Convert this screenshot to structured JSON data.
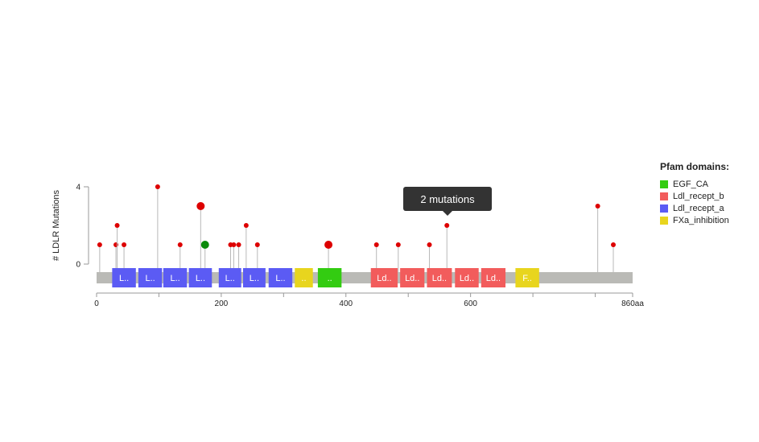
{
  "chart_data": {
    "type": "lollipop",
    "ylabel": "# LDLR Mutations",
    "y_ticks": [
      0,
      4
    ],
    "ylim": [
      0,
      4
    ],
    "x_ticks": [
      {
        "value": 0,
        "label": "0"
      },
      {
        "value": 200,
        "label": "200"
      },
      {
        "value": 400,
        "label": "400"
      },
      {
        "value": 600,
        "label": "600"
      },
      {
        "value": 860,
        "label": "860aa"
      }
    ],
    "xlim": [
      0,
      860
    ],
    "protein_length": 860,
    "mutations": [
      {
        "pos": 5,
        "count": 1,
        "color": "#dd0000"
      },
      {
        "pos": 31,
        "count": 1,
        "color": "#dd0000"
      },
      {
        "pos": 33,
        "count": 2,
        "color": "#dd0000"
      },
      {
        "pos": 44,
        "count": 1,
        "color": "#dd0000"
      },
      {
        "pos": 98,
        "count": 4,
        "color": "#dd0000"
      },
      {
        "pos": 134,
        "count": 1,
        "color": "#dd0000"
      },
      {
        "pos": 167,
        "count": 3,
        "color": "#dd0000",
        "big": true
      },
      {
        "pos": 174,
        "count": 1,
        "color": "#0a8a0a",
        "big": true
      },
      {
        "pos": 215,
        "count": 1,
        "color": "#dd0000"
      },
      {
        "pos": 220,
        "count": 1,
        "color": "#dd0000"
      },
      {
        "pos": 228,
        "count": 1,
        "color": "#dd0000"
      },
      {
        "pos": 240,
        "count": 2,
        "color": "#dd0000"
      },
      {
        "pos": 258,
        "count": 1,
        "color": "#dd0000"
      },
      {
        "pos": 372,
        "count": 1,
        "color": "#dd0000",
        "big": true
      },
      {
        "pos": 449,
        "count": 1,
        "color": "#dd0000"
      },
      {
        "pos": 484,
        "count": 1,
        "color": "#dd0000"
      },
      {
        "pos": 534,
        "count": 1,
        "color": "#dd0000"
      },
      {
        "pos": 562,
        "count": 2,
        "color": "#dd0000"
      },
      {
        "pos": 804,
        "count": 3,
        "color": "#dd0000"
      },
      {
        "pos": 829,
        "count": 1,
        "color": "#dd0000"
      }
    ],
    "domains": [
      {
        "start": 25,
        "end": 63,
        "label": "L..",
        "color": "#5b5bf4"
      },
      {
        "start": 67,
        "end": 105,
        "label": "L..",
        "color": "#5b5bf4"
      },
      {
        "start": 107,
        "end": 145,
        "label": "L..",
        "color": "#5b5bf4"
      },
      {
        "start": 148,
        "end": 185,
        "label": "L..",
        "color": "#5b5bf4"
      },
      {
        "start": 196,
        "end": 232,
        "label": "L..",
        "color": "#5b5bf4"
      },
      {
        "start": 235,
        "end": 271,
        "label": "L..",
        "color": "#5b5bf4"
      },
      {
        "start": 276,
        "end": 314,
        "label": "L..",
        "color": "#5b5bf4"
      },
      {
        "start": 318,
        "end": 347,
        "label": "..",
        "color": "#e8d51e"
      },
      {
        "start": 355,
        "end": 393,
        "label": "..",
        "color": "#33cc11"
      },
      {
        "start": 440,
        "end": 483,
        "label": "Ld..",
        "color": "#f25c5c"
      },
      {
        "start": 487,
        "end": 526,
        "label": "Ld..",
        "color": "#f25c5c"
      },
      {
        "start": 530,
        "end": 570,
        "label": "Ld..",
        "color": "#f25c5c"
      },
      {
        "start": 575,
        "end": 613,
        "label": "Ld..",
        "color": "#f25c5c"
      },
      {
        "start": 617,
        "end": 656,
        "label": "Ld..",
        "color": "#f25c5c"
      },
      {
        "start": 672,
        "end": 710,
        "label": "F..",
        "color": "#e8d51e"
      }
    ],
    "legend_title": "Pfam domains:",
    "legend": [
      {
        "name": "EGF_CA",
        "color": "#33cc11"
      },
      {
        "name": "Ldl_recept_b",
        "color": "#f25c5c"
      },
      {
        "name": "Ldl_recept_a",
        "color": "#5b5bf4"
      },
      {
        "name": "FXa_inhibition",
        "color": "#e8d51e"
      }
    ],
    "tooltip": "2 mutations"
  }
}
